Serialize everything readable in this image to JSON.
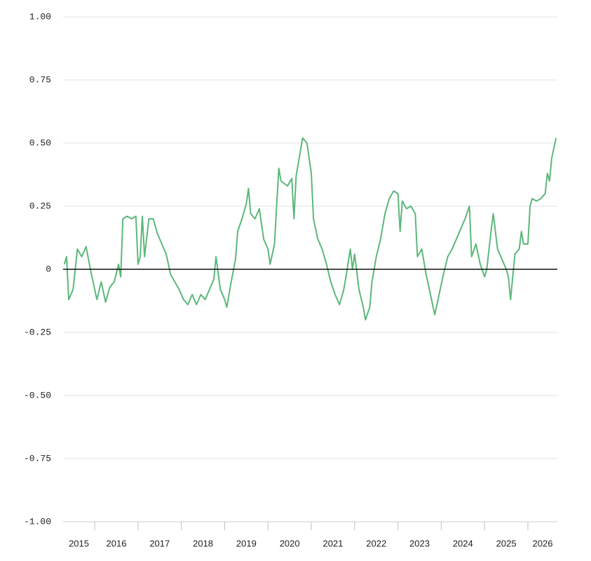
{
  "chart_data": {
    "type": "line",
    "x": [
      2015.3,
      2015.35,
      2015.4,
      2015.5,
      2015.6,
      2015.7,
      2015.8,
      2015.9,
      2016.0,
      2016.05,
      2016.15,
      2016.25,
      2016.35,
      2016.45,
      2016.55,
      2016.6,
      2016.65,
      2016.75,
      2016.85,
      2016.95,
      2017.0,
      2017.05,
      2017.1,
      2017.15,
      2017.25,
      2017.35,
      2017.45,
      2017.55,
      2017.65,
      2017.75,
      2017.85,
      2017.95,
      2018.05,
      2018.15,
      2018.25,
      2018.35,
      2018.45,
      2018.55,
      2018.65,
      2018.75,
      2018.8,
      2018.9,
      2019.0,
      2019.05,
      2019.15,
      2019.25,
      2019.3,
      2019.4,
      2019.5,
      2019.55,
      2019.6,
      2019.7,
      2019.8,
      2019.85,
      2019.9,
      2020.0,
      2020.05,
      2020.15,
      2020.25,
      2020.3,
      2020.45,
      2020.55,
      2020.6,
      2020.65,
      2020.75,
      2020.8,
      2020.9,
      2021.0,
      2021.05,
      2021.15,
      2021.25,
      2021.35,
      2021.45,
      2021.55,
      2021.65,
      2021.75,
      2021.8,
      2021.9,
      2021.95,
      2022.0,
      2022.1,
      2022.2,
      2022.25,
      2022.35,
      2022.4,
      2022.5,
      2022.6,
      2022.7,
      2022.8,
      2022.9,
      2023.0,
      2023.05,
      2023.1,
      2023.2,
      2023.3,
      2023.4,
      2023.45,
      2023.55,
      2023.65,
      2023.75,
      2023.85,
      2023.95,
      2024.05,
      2024.15,
      2024.25,
      2024.35,
      2024.45,
      2024.55,
      2024.65,
      2024.7,
      2024.8,
      2024.9,
      2025.0,
      2025.05,
      2025.15,
      2025.2,
      2025.3,
      2025.4,
      2025.5,
      2025.55,
      2025.6,
      2025.7,
      2025.8,
      2025.85,
      2025.9,
      2026.0,
      2026.05,
      2026.1,
      2026.2,
      2026.3,
      2026.4,
      2026.45,
      2026.5,
      2026.55,
      2026.65
    ],
    "values": [
      0.02,
      0.05,
      -0.12,
      -0.08,
      0.08,
      0.05,
      0.09,
      0.0,
      -0.08,
      -0.12,
      -0.05,
      -0.13,
      -0.07,
      -0.05,
      0.02,
      -0.03,
      0.2,
      0.21,
      0.2,
      0.21,
      0.02,
      0.05,
      0.21,
      0.05,
      0.2,
      0.2,
      0.14,
      0.1,
      0.06,
      -0.02,
      -0.05,
      -0.08,
      -0.12,
      -0.14,
      -0.1,
      -0.14,
      -0.1,
      -0.12,
      -0.08,
      -0.04,
      0.05,
      -0.08,
      -0.12,
      -0.15,
      -0.05,
      0.04,
      0.15,
      0.2,
      0.26,
      0.32,
      0.22,
      0.2,
      0.24,
      0.18,
      0.12,
      0.08,
      0.02,
      0.1,
      0.4,
      0.35,
      0.33,
      0.36,
      0.2,
      0.37,
      0.47,
      0.52,
      0.5,
      0.38,
      0.2,
      0.12,
      0.08,
      0.02,
      -0.05,
      -0.1,
      -0.14,
      -0.08,
      -0.03,
      0.08,
      0.0,
      0.06,
      -0.08,
      -0.15,
      -0.2,
      -0.15,
      -0.05,
      0.05,
      0.12,
      0.22,
      0.28,
      0.31,
      0.3,
      0.15,
      0.27,
      0.24,
      0.25,
      0.22,
      0.05,
      0.08,
      -0.02,
      -0.1,
      -0.18,
      -0.1,
      -0.02,
      0.05,
      0.08,
      0.12,
      0.16,
      0.2,
      0.25,
      0.05,
      0.1,
      0.02,
      -0.03,
      0.0,
      0.15,
      0.22,
      0.08,
      0.04,
      0.0,
      -0.03,
      -0.12,
      0.06,
      0.08,
      0.15,
      0.1,
      0.1,
      0.25,
      0.28,
      0.27,
      0.28,
      0.3,
      0.38,
      0.35,
      0.44,
      0.52
    ],
    "color": "#5cb87a",
    "xlim": [
      2015.27,
      2026.68
    ],
    "xticks": [
      {
        "value": 2015,
        "label": "2015"
      },
      {
        "value": 2016,
        "label": "2016"
      },
      {
        "value": 2017,
        "label": "2017"
      },
      {
        "value": 2018,
        "label": "2018"
      },
      {
        "value": 2019,
        "label": "2019"
      },
      {
        "value": 2020,
        "label": "2020"
      },
      {
        "value": 2021,
        "label": "2021"
      },
      {
        "value": 2022,
        "label": "2022"
      },
      {
        "value": 2023,
        "label": "2023"
      },
      {
        "value": 2024,
        "label": "2024"
      },
      {
        "value": 2025,
        "label": "2025"
      },
      {
        "value": 2026,
        "label": "2026"
      }
    ],
    "ylim": [
      -1,
      1
    ],
    "yticks": [
      {
        "value": 1,
        "label": "1.00"
      },
      0.75,
      {
        "value": 0.5,
        "label": "0.50"
      },
      0.25,
      0,
      -0.25,
      {
        "value": -0.5,
        "label": "-0.50"
      },
      -0.75,
      {
        "value": -1,
        "label": "-1.00"
      }
    ],
    "grid": true
  }
}
